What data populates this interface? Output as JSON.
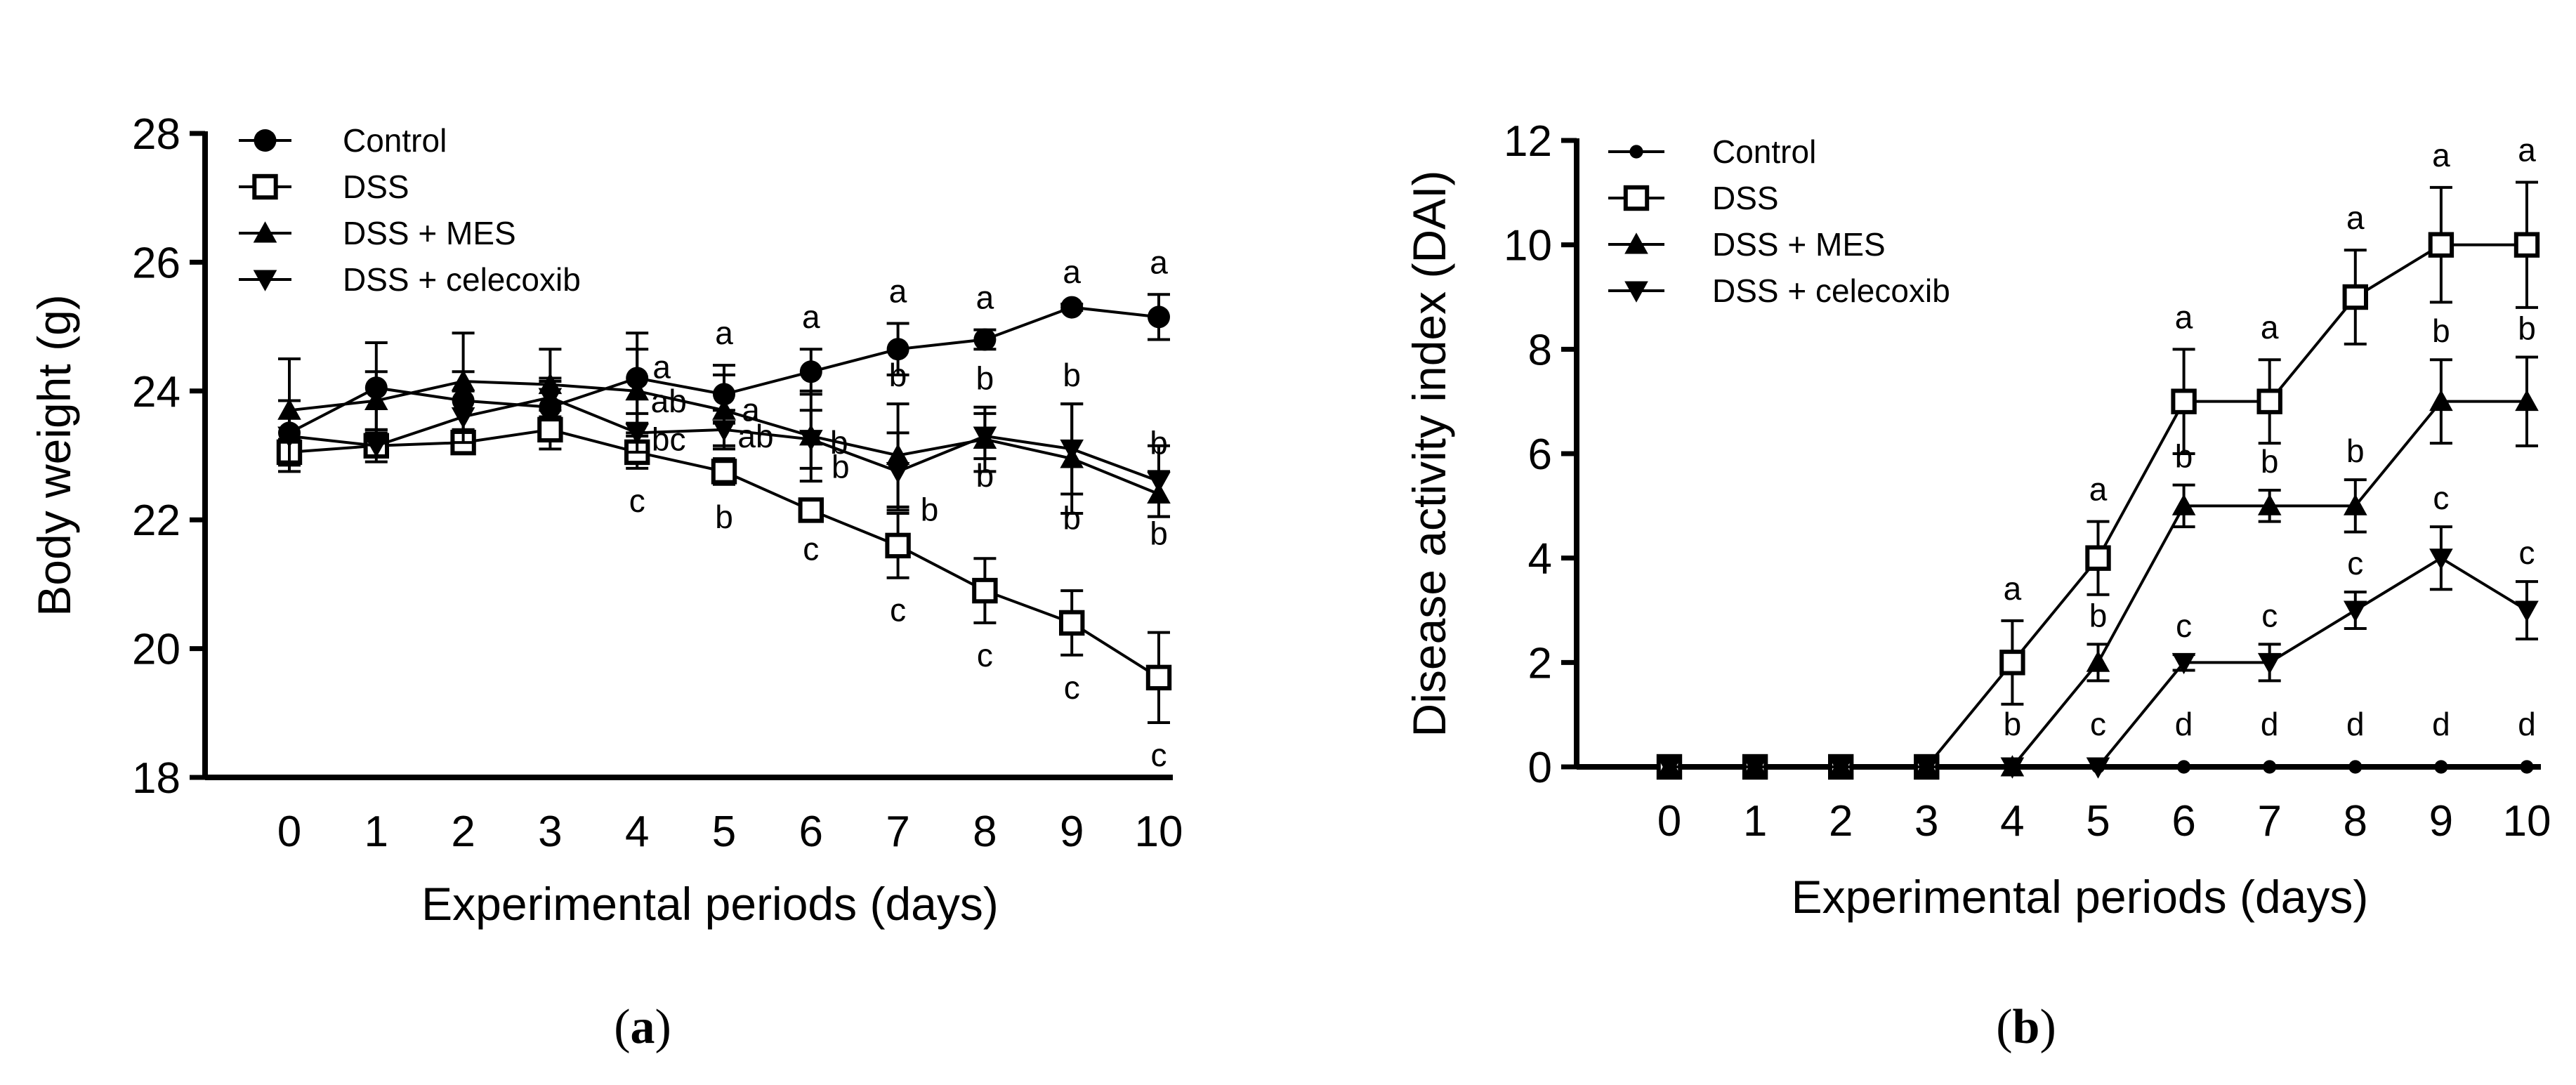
{
  "chart_data": [
    {
      "type": "line",
      "panel_label": "a",
      "ylabel": "Body weight (g)",
      "xlabel": "Experimental periods (days)",
      "x": [
        0,
        1,
        2,
        3,
        4,
        5,
        6,
        7,
        8,
        9,
        10
      ],
      "xticks": [
        "0",
        "1",
        "2",
        "3",
        "4",
        "5",
        "6",
        "7",
        "8",
        "9",
        "10"
      ],
      "ylim": [
        18,
        28
      ],
      "yticks": [
        "18",
        "20",
        "22",
        "24",
        "26",
        "28"
      ],
      "legend_position": "top-left",
      "series": [
        {
          "name": "Control",
          "marker": "filled-circle",
          "values": [
            23.35,
            24.05,
            23.85,
            23.75,
            24.2,
            23.95,
            24.3,
            24.65,
            24.8,
            25.3,
            25.15
          ],
          "errors": [
            0.5,
            0.7,
            0.45,
            0.4,
            0.7,
            0.45,
            0.35,
            0.4,
            0.15,
            0.05,
            0.35
          ],
          "labels": [
            "",
            "",
            "",
            "",
            "a",
            "a",
            "a",
            "a",
            "a",
            "a",
            "a"
          ]
        },
        {
          "name": "DSS",
          "marker": "open-square",
          "values": [
            23.05,
            23.15,
            23.2,
            23.4,
            23.05,
            22.75,
            22.15,
            21.6,
            20.9,
            20.4,
            19.55
          ],
          "errors": [
            0.2,
            0.15,
            0.1,
            0.3,
            0.25,
            0.2,
            0.1,
            0.5,
            0.5,
            0.5,
            0.7
          ],
          "labels": [
            "",
            "",
            "",
            "",
            "c",
            "b",
            "c",
            "c",
            "c",
            "c",
            "c"
          ]
        },
        {
          "name": "DSS + MES",
          "marker": "up-triangle",
          "values": [
            23.7,
            23.85,
            24.15,
            24.1,
            24.0,
            23.7,
            23.3,
            23.0,
            23.25,
            22.95,
            22.4
          ],
          "errors": [
            0.8,
            0.45,
            0.75,
            0.55,
            0.65,
            0.55,
            0.7,
            0.8,
            0.5,
            0.85,
            0.35
          ],
          "labels": [
            "",
            "",
            "",
            "",
            "ab",
            "a",
            "b",
            "b",
            "b",
            "b",
            "b"
          ]
        },
        {
          "name": "DSS + celecoxib",
          "marker": "down-triangle",
          "values": [
            23.3,
            23.15,
            23.6,
            23.9,
            23.35,
            23.4,
            23.25,
            22.75,
            23.3,
            23.1,
            22.6
          ],
          "errors": [
            0.55,
            0.25,
            0.4,
            0.3,
            0.3,
            0.3,
            0.45,
            0.6,
            0.35,
            0.7,
            0.55
          ],
          "labels": [
            "",
            "",
            "",
            "",
            "bc",
            "ab",
            "b",
            "b",
            "b",
            "b",
            "b"
          ]
        }
      ]
    },
    {
      "type": "line",
      "panel_label": "b",
      "ylabel": "Disease activity index (DAI)",
      "xlabel": "Experimental periods (days)",
      "x": [
        0,
        1,
        2,
        3,
        4,
        5,
        6,
        7,
        8,
        9,
        10
      ],
      "xticks": [
        "0",
        "1",
        "2",
        "3",
        "4",
        "5",
        "6",
        "7",
        "8",
        "9",
        "10"
      ],
      "ylim": [
        0,
        12
      ],
      "yticks": [
        "0",
        "2",
        "4",
        "6",
        "8",
        "10",
        "12"
      ],
      "legend_position": "top-left",
      "series": [
        {
          "name": "Control",
          "marker": "small-filled-circle",
          "values": [
            0,
            0,
            0,
            0,
            0,
            0,
            0,
            0,
            0,
            0,
            0
          ],
          "errors": [
            0,
            0,
            0,
            0,
            0,
            0,
            0,
            0,
            0,
            0,
            0
          ],
          "labels": [
            "",
            "",
            "",
            "",
            "",
            "",
            "d",
            "d",
            "d",
            "d",
            "d"
          ]
        },
        {
          "name": "DSS",
          "marker": "open-square",
          "values": [
            0,
            0,
            0,
            0,
            2,
            4,
            7,
            7,
            9,
            10,
            10
          ],
          "errors": [
            0,
            0,
            0,
            0,
            0.8,
            0.7,
            1.0,
            0.8,
            0.9,
            1.1,
            1.2
          ],
          "labels": [
            "",
            "",
            "",
            "",
            "a",
            "a",
            "a",
            "a",
            "a",
            "a",
            "a"
          ]
        },
        {
          "name": "DSS + MES",
          "marker": "up-triangle",
          "values": [
            0,
            0,
            0,
            0,
            0,
            2,
            5,
            5,
            5,
            7,
            7
          ],
          "errors": [
            0,
            0,
            0,
            0,
            0,
            0.35,
            0.4,
            0.3,
            0.5,
            0.8,
            0.85
          ],
          "labels": [
            "",
            "",
            "",
            "",
            "b",
            "b",
            "b",
            "b",
            "b",
            "b",
            "b"
          ]
        },
        {
          "name": "DSS + celecoxib",
          "marker": "down-triangle",
          "values": [
            0,
            0,
            0,
            0,
            0,
            0,
            2,
            2,
            3,
            4,
            3
          ],
          "errors": [
            0,
            0,
            0,
            0,
            0,
            0,
            0.15,
            0.35,
            0.35,
            0.6,
            0.55
          ],
          "labels": [
            "",
            "",
            "",
            "",
            "",
            "c",
            "c",
            "c",
            "c",
            "c",
            "c"
          ]
        }
      ]
    }
  ]
}
